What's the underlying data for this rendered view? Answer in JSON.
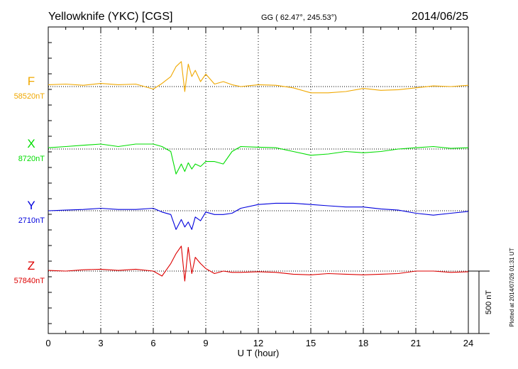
{
  "header": {
    "title": "Yellowknife (YKC)  [CGS]",
    "coords": "GG ( 62.47°, 245.53°)",
    "date": "2014/06/25"
  },
  "footer": {
    "plotted": "Plotted at 2014/07/26 01:31  UT"
  },
  "chart_data": {
    "type": "line",
    "xlabel": "U T (hour)",
    "xlim": [
      0,
      24
    ],
    "xticks": [
      "0",
      "3",
      "6",
      "9",
      "12",
      "15",
      "18",
      "21",
      "24"
    ],
    "scale_label": "500 nT",
    "colors": {
      "F": "#f0a800",
      "X": "#00dd00",
      "Y": "#0000dd",
      "Z": "#dd0000"
    },
    "series": [
      {
        "name": "F",
        "baseline_label": "58520nT",
        "baseline": 58520,
        "x": [
          0,
          1,
          2,
          3,
          4,
          5,
          6,
          6.5,
          7,
          7.3,
          7.6,
          7.8,
          8.0,
          8.2,
          8.4,
          8.7,
          9,
          9.5,
          10,
          10.5,
          11,
          12,
          13,
          14,
          15,
          16,
          17,
          18,
          19,
          20,
          21,
          22,
          23,
          24
        ],
        "y": [
          58535,
          58540,
          58530,
          58545,
          58535,
          58540,
          58500,
          58545,
          58600,
          58680,
          58720,
          58480,
          58700,
          58600,
          58650,
          58560,
          58620,
          58540,
          58560,
          58535,
          58520,
          58535,
          58530,
          58510,
          58470,
          58470,
          58480,
          58505,
          58490,
          58495,
          58510,
          58525,
          58520,
          58530
        ]
      },
      {
        "name": "X",
        "baseline_label": "8720nT",
        "baseline": 8720,
        "x": [
          0,
          1,
          2,
          3,
          4,
          5,
          6,
          6.5,
          7,
          7.3,
          7.6,
          7.8,
          8.0,
          8.2,
          8.4,
          8.7,
          9,
          9.5,
          10,
          10.5,
          11,
          12,
          13,
          14,
          15,
          16,
          17,
          18,
          19,
          20,
          21,
          22,
          23,
          24
        ],
        "y": [
          8730,
          8740,
          8750,
          8760,
          8740,
          8760,
          8760,
          8740,
          8700,
          8520,
          8600,
          8540,
          8610,
          8560,
          8600,
          8580,
          8620,
          8620,
          8600,
          8700,
          8740,
          8735,
          8730,
          8700,
          8670,
          8680,
          8700,
          8690,
          8700,
          8720,
          8730,
          8740,
          8725,
          8730
        ]
      },
      {
        "name": "Y",
        "baseline_label": "2710nT",
        "baseline": 2710,
        "x": [
          0,
          1,
          2,
          3,
          4,
          5,
          6,
          6.5,
          7,
          7.3,
          7.6,
          7.8,
          8.0,
          8.2,
          8.4,
          8.7,
          9,
          9.5,
          10,
          10.5,
          11,
          12,
          13,
          14,
          15,
          16,
          17,
          18,
          19,
          20,
          21,
          22,
          23,
          24
        ],
        "y": [
          2710,
          2715,
          2720,
          2730,
          2720,
          2720,
          2730,
          2700,
          2680,
          2560,
          2640,
          2580,
          2620,
          2560,
          2660,
          2630,
          2700,
          2680,
          2680,
          2690,
          2730,
          2760,
          2770,
          2770,
          2760,
          2750,
          2740,
          2740,
          2725,
          2715,
          2690,
          2675,
          2690,
          2705
        ]
      },
      {
        "name": "Z",
        "baseline_label": "57840nT",
        "baseline": 57840,
        "x": [
          0,
          1,
          2,
          3,
          4,
          5,
          6,
          6.5,
          7,
          7.3,
          7.6,
          7.8,
          8.0,
          8.2,
          8.4,
          8.7,
          9,
          9.5,
          10,
          10.5,
          11,
          12,
          13,
          14,
          15,
          16,
          17,
          18,
          19,
          20,
          21,
          22,
          23,
          24
        ],
        "y": [
          57845,
          57840,
          57850,
          57855,
          57845,
          57855,
          57840,
          57800,
          57900,
          57980,
          58040,
          57760,
          58030,
          57820,
          57950,
          57900,
          57860,
          57820,
          57840,
          57830,
          57830,
          57835,
          57830,
          57815,
          57810,
          57820,
          57815,
          57810,
          57815,
          57820,
          57840,
          57840,
          57830,
          57835
        ]
      }
    ]
  }
}
